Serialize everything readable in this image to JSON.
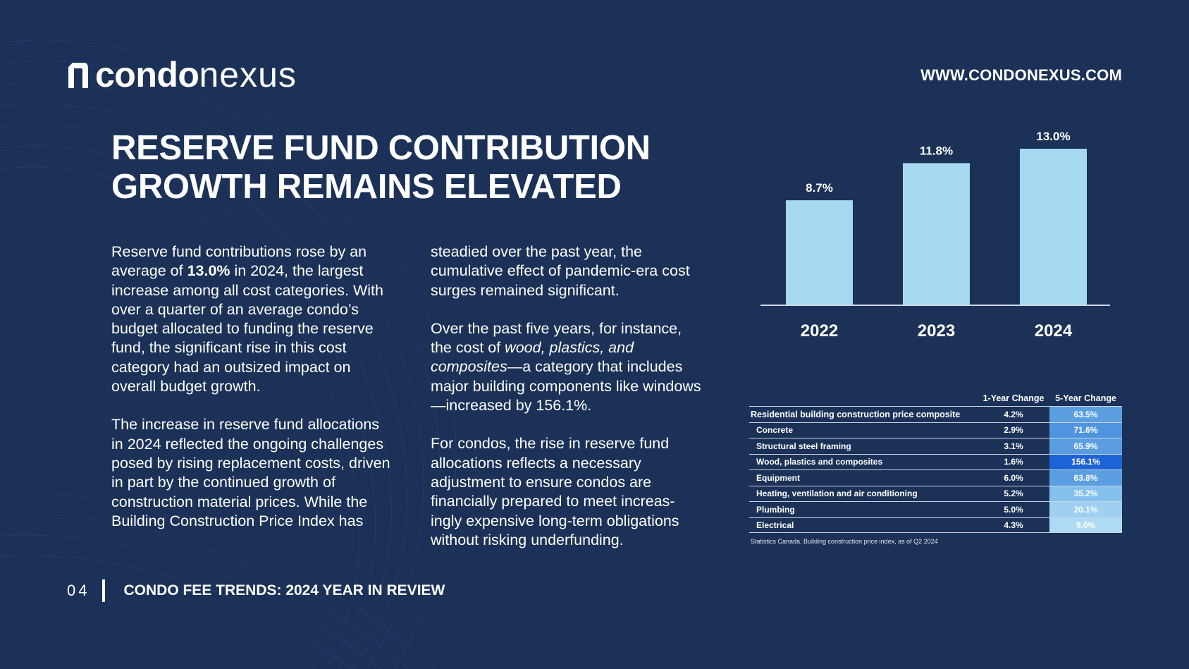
{
  "brand": {
    "bold": "condo",
    "light": "nexus",
    "website": "WWW.CONDONEXUS.COM"
  },
  "headline": {
    "line1": "RESERVE FUND CONTRIBUTION",
    "line2": "GROWTH REMAINS ELEVATED"
  },
  "body": {
    "c1p1_a": "Reserve fund contributions rose by an average of ",
    "c1p1_b": "13.0%",
    "c1p1_c": " in 2024, the largest increase among all cost categories. With over a quarter of an average condo’s budget allocated to funding the reserve fund, the significant rise in this cost category had an outsized impact on overall budget growth.",
    "c1p2": "The increase in reserve fund allocations in 2024 reflected the ongoing challenges posed by rising replacement costs, driven in part by the continued growth of construction material prices. While the Building Construction Price Index has",
    "c2p1": "steadied over the past year, the cumulative effect of pandemic-era cost surges remained significant.",
    "c2p2_a": "Over the past five years, for instance, the cost of ",
    "c2p2_b": "wood, plastics, and composites",
    "c2p2_c": "—a category that includes major building components like windows—increased by 156.1%.",
    "c2p3": "For condos, the rise in reserve fund allocations reflects a necessary adjustment to ensure condos are financially prepared to meet increas-ingly expensive long-term obligations without risking underfunding."
  },
  "footer": {
    "page": "04",
    "title": "CONDO FEE TRENDS: 2024 YEAR IN REVIEW"
  },
  "chart_data": [
    {
      "type": "bar",
      "categories": [
        "2022",
        "2023",
        "2024"
      ],
      "values": [
        8.7,
        11.8,
        13.0
      ],
      "data_labels": [
        "8.7%",
        "11.8%",
        "13.0%"
      ],
      "title": "",
      "xlabel": "",
      "ylabel": "",
      "ylim": [
        0,
        15
      ],
      "grid": false,
      "bar_color": "#a6d8f0"
    },
    {
      "type": "table",
      "columns": [
        "",
        "1-Year Change",
        "5-Year Change"
      ],
      "rows": [
        {
          "label": "Residential building construction price composite",
          "one_year": "4.2%",
          "five_year": "63.5%",
          "heat": "#5b9fe1"
        },
        {
          "label": "Concrete",
          "one_year": "2.9%",
          "five_year": "71.6%",
          "heat": "#4f95e0"
        },
        {
          "label": "Structural steel framing",
          "one_year": "3.1%",
          "five_year": "65.9%",
          "heat": "#5a9de1"
        },
        {
          "label": "Wood, plastics and composites",
          "one_year": "1.6%",
          "five_year": "156.1%",
          "heat": "#1e63d6"
        },
        {
          "label": "Equipment",
          "one_year": "6.0%",
          "five_year": "63.8%",
          "heat": "#5b9fe1"
        },
        {
          "label": "Heating, ventilation and air conditioning",
          "one_year": "5.2%",
          "five_year": "35.2%",
          "heat": "#86c0ec"
        },
        {
          "label": "Plumbing",
          "one_year": "5.0%",
          "five_year": "20.1%",
          "heat": "#9fd0f1"
        },
        {
          "label": "Electrical",
          "one_year": "4.3%",
          "five_year": "9.0%",
          "heat": "#aedaf3"
        }
      ],
      "source": "Statistics Canada. Building construction price index, as of Q2 2024"
    }
  ]
}
